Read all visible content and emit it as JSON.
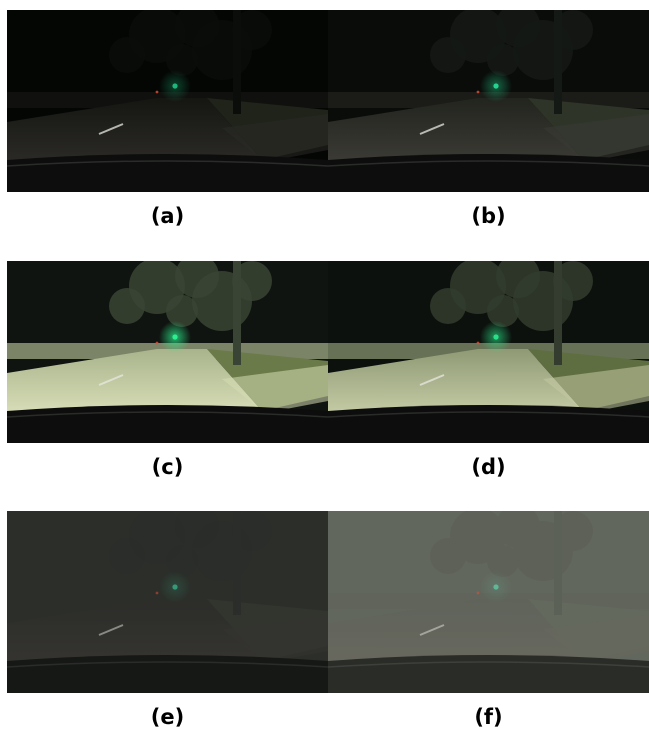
{
  "panels": [
    {
      "id": "a",
      "caption": "(a)",
      "tone": {
        "sky": "#040604",
        "road": "#2a2926",
        "far": "#151612",
        "grass": "#1f231a",
        "light": "#1eb67a",
        "glow": 0.35,
        "haze": 0.0,
        "hazeColor": "#000000",
        "tree": "#0b0d0b"
      }
    },
    {
      "id": "b",
      "caption": "(b)",
      "tone": {
        "sky": "#0a0c0a",
        "road": "#3b3a35",
        "far": "#22241e",
        "grass": "#2e3428",
        "light": "#25d38f",
        "glow": 0.45,
        "haze": 0.0,
        "hazeColor": "#000000",
        "tree": "#151915"
      }
    },
    {
      "id": "c",
      "caption": "(c)",
      "tone": {
        "sky": "#101410",
        "road": "#d6dcb5",
        "far": "#a9b48c",
        "grass": "#6a7a48",
        "light": "#2cf08f",
        "glow": 0.75,
        "haze": 0.0,
        "hazeColor": "#000000",
        "tree": "#3a4434"
      }
    },
    {
      "id": "d",
      "caption": "(d)",
      "tone": {
        "sky": "#0d110d",
        "road": "#c2c9a3",
        "far": "#8f9a75",
        "grass": "#5f6e40",
        "light": "#2ae087",
        "glow": 0.65,
        "haze": 0.0,
        "hazeColor": "#000000",
        "tree": "#333c2e"
      }
    },
    {
      "id": "e",
      "caption": "(e)",
      "tone": {
        "sky": "#2b2f29",
        "road": "#3a3733",
        "far": "#2d2e29",
        "grass": "#353a31",
        "light": "#3bd2a2",
        "glow": 0.25,
        "haze": 0.0,
        "hazeColor": "#2c2f2a",
        "tree": "#2a2d28"
      }
    },
    {
      "id": "f",
      "caption": "(f)",
      "tone": {
        "sky": "#63675e",
        "road": "#6b6860",
        "far": "#5f625a",
        "grass": "#646a5e",
        "light": "#5ee0bb",
        "glow": 0.2,
        "haze": 0.0,
        "hazeColor": "#62665d",
        "tree": "#5a5e56"
      }
    }
  ]
}
